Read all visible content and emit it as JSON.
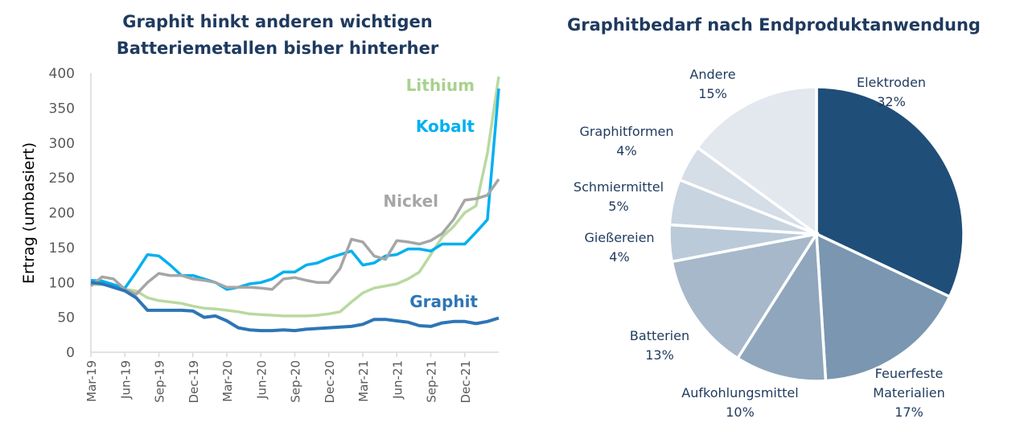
{
  "chart_data": [
    {
      "type": "line",
      "title_lines": [
        "Graphit hinkt anderen wichtigen",
        "Batteriemetallen bisher hinterher"
      ],
      "ylabel": "Ertrag (umbasiert)",
      "xlabel": "",
      "ylim": [
        0,
        400
      ],
      "yticks": [
        0,
        50,
        100,
        150,
        200,
        250,
        300,
        350,
        400
      ],
      "xlim": [
        "2019-03",
        "2022-03"
      ],
      "xticks": [
        {
          "date": "2019-03",
          "label": "Mar-19"
        },
        {
          "date": "2019-06",
          "label": "Jun-19"
        },
        {
          "date": "2019-09",
          "label": "Sep-19"
        },
        {
          "date": "2019-12",
          "label": "Dec-19"
        },
        {
          "date": "2020-03",
          "label": "Mar-20"
        },
        {
          "date": "2020-06",
          "label": "Jun-20"
        },
        {
          "date": "2020-09",
          "label": "Sep-20"
        },
        {
          "date": "2020-12",
          "label": "Dec-20"
        },
        {
          "date": "2021-03",
          "label": "Mar-21"
        },
        {
          "date": "2021-06",
          "label": "Jun-21"
        },
        {
          "date": "2021-09",
          "label": "Sep-21"
        },
        {
          "date": "2021-12",
          "label": "Dec-21"
        }
      ],
      "grid": false,
      "legend": "inline labels at right",
      "x": [
        "2019-03",
        "2019-04",
        "2019-05",
        "2019-06",
        "2019-07",
        "2019-08",
        "2019-09",
        "2019-10",
        "2019-11",
        "2019-12",
        "2020-01",
        "2020-02",
        "2020-03",
        "2020-04",
        "2020-05",
        "2020-06",
        "2020-07",
        "2020-08",
        "2020-09",
        "2020-10",
        "2020-11",
        "2020-12",
        "2021-01",
        "2021-02",
        "2021-03",
        "2021-04",
        "2021-05",
        "2021-06",
        "2021-07",
        "2021-08",
        "2021-09",
        "2021-10",
        "2021-11",
        "2021-12",
        "2022-01",
        "2022-02",
        "2022-03"
      ],
      "series": [
        {
          "name": "Lithium",
          "color": "#B9D9A0",
          "values": [
            97,
            97,
            95,
            90,
            88,
            78,
            74,
            72,
            70,
            66,
            63,
            62,
            60,
            58,
            55,
            54,
            53,
            52,
            52,
            52,
            53,
            55,
            58,
            72,
            85,
            92,
            95,
            98,
            105,
            115,
            140,
            165,
            180,
            200,
            210,
            285,
            395
          ]
        },
        {
          "name": "Kobalt",
          "color": "#00B0F0",
          "values": [
            103,
            102,
            97,
            92,
            115,
            140,
            138,
            125,
            110,
            110,
            105,
            100,
            90,
            93,
            98,
            100,
            105,
            115,
            115,
            125,
            128,
            135,
            140,
            145,
            125,
            128,
            138,
            140,
            148,
            148,
            145,
            155,
            155,
            155,
            172,
            190,
            378
          ]
        },
        {
          "name": "Nickel",
          "color": "#A6A6A6",
          "values": [
            95,
            108,
            105,
            90,
            83,
            100,
            113,
            110,
            110,
            105,
            103,
            100,
            93,
            93,
            93,
            92,
            90,
            105,
            107,
            103,
            100,
            100,
            120,
            162,
            158,
            138,
            133,
            160,
            158,
            155,
            160,
            170,
            190,
            218,
            220,
            225,
            248
          ]
        },
        {
          "name": "Graphit",
          "color": "#2E75B6",
          "values": [
            100,
            98,
            93,
            88,
            78,
            60,
            60,
            60,
            60,
            59,
            50,
            52,
            45,
            35,
            32,
            31,
            31,
            32,
            31,
            33,
            34,
            35,
            36,
            37,
            40,
            47,
            47,
            45,
            43,
            38,
            37,
            42,
            44,
            44,
            41,
            44,
            49
          ]
        }
      ]
    },
    {
      "type": "pie",
      "title": "Graphitbedarf nach Endproduktanwendung",
      "slices": [
        {
          "label": "Elektroden",
          "value": 32,
          "text": "32%",
          "color": "#1F4E79"
        },
        {
          "label": "Feuerfeste Materialien",
          "label_lines": [
            "Feuerfeste",
            "Materialien"
          ],
          "value": 17,
          "text": "17%",
          "color": "#7A96B0"
        },
        {
          "label": "Aufkohlungsmittel",
          "value": 10,
          "text": "10%",
          "color": "#8FA6BD"
        },
        {
          "label": "Batterien",
          "value": 13,
          "text": "13%",
          "color": "#A6B8CA"
        },
        {
          "label": "Gießereien",
          "value": 4,
          "text": "4%",
          "color": "#BBCAD8"
        },
        {
          "label": "Schmiermittel",
          "value": 5,
          "text": "5%",
          "color": "#C8D4E0"
        },
        {
          "label": "Graphitformen",
          "value": 4,
          "text": "4%",
          "color": "#D5DDE7"
        },
        {
          "label": "Andere",
          "value": 15,
          "text": "15%",
          "color": "#E3E8EF"
        }
      ]
    }
  ]
}
